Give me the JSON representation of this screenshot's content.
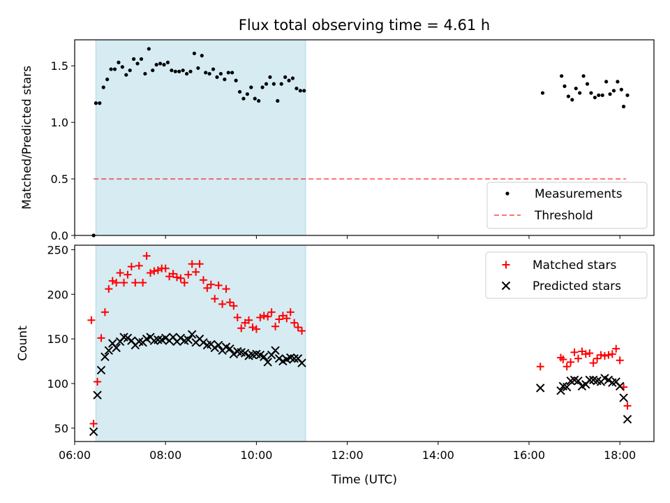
{
  "title": "Flux total observing time = 4.61 h",
  "colors": {
    "highlight": "#add8e6",
    "threshold": "#ff0000",
    "matched": "#ff0000",
    "predicted": "#000000",
    "measurement": "#000000"
  },
  "chart_data": [
    {
      "type": "scatter",
      "ylabel": "Matched/Predicted stars",
      "xlim": [
        "06:00",
        "18:45"
      ],
      "ylim": [
        0,
        1.73
      ],
      "yticks": [
        "0.0",
        "0.5",
        "1.0",
        "1.5"
      ],
      "highlight_span": [
        "06:28",
        "11:05"
      ],
      "legend": {
        "position": "lower right",
        "entries": [
          "Measurements",
          "Threshold"
        ]
      },
      "threshold": {
        "name": "Threshold",
        "value": 0.5,
        "x_range": [
          "06:25",
          "18:08"
        ]
      },
      "series": [
        {
          "name": "Measurements",
          "points": [
            [
              "06:25",
              0.0
            ],
            [
              "06:28",
              1.17
            ],
            [
              "06:33",
              1.17
            ],
            [
              "06:38",
              1.31
            ],
            [
              "06:43",
              1.38
            ],
            [
              "06:48",
              1.47
            ],
            [
              "06:53",
              1.47
            ],
            [
              "06:58",
              1.53
            ],
            [
              "07:03",
              1.49
            ],
            [
              "07:08",
              1.42
            ],
            [
              "07:13",
              1.46
            ],
            [
              "07:18",
              1.56
            ],
            [
              "07:23",
              1.52
            ],
            [
              "07:28",
              1.56
            ],
            [
              "07:33",
              1.43
            ],
            [
              "07:38",
              1.65
            ],
            [
              "07:43",
              1.46
            ],
            [
              "07:48",
              1.51
            ],
            [
              "07:53",
              1.52
            ],
            [
              "07:58",
              1.51
            ],
            [
              "08:03",
              1.53
            ],
            [
              "08:08",
              1.46
            ],
            [
              "08:13",
              1.45
            ],
            [
              "08:18",
              1.45
            ],
            [
              "08:23",
              1.46
            ],
            [
              "08:28",
              1.43
            ],
            [
              "08:33",
              1.45
            ],
            [
              "08:38",
              1.61
            ],
            [
              "08:43",
              1.48
            ],
            [
              "08:48",
              1.59
            ],
            [
              "08:53",
              1.44
            ],
            [
              "08:58",
              1.43
            ],
            [
              "09:03",
              1.47
            ],
            [
              "09:08",
              1.4
            ],
            [
              "09:13",
              1.43
            ],
            [
              "09:18",
              1.38
            ],
            [
              "09:23",
              1.44
            ],
            [
              "09:28",
              1.44
            ],
            [
              "09:33",
              1.37
            ],
            [
              "09:38",
              1.27
            ],
            [
              "09:43",
              1.21
            ],
            [
              "09:48",
              1.25
            ],
            [
              "09:53",
              1.31
            ],
            [
              "09:58",
              1.21
            ],
            [
              "10:03",
              1.19
            ],
            [
              "10:08",
              1.31
            ],
            [
              "10:13",
              1.34
            ],
            [
              "10:18",
              1.4
            ],
            [
              "10:23",
              1.34
            ],
            [
              "10:28",
              1.19
            ],
            [
              "10:33",
              1.34
            ],
            [
              "10:38",
              1.4
            ],
            [
              "10:43",
              1.37
            ],
            [
              "10:48",
              1.39
            ],
            [
              "10:53",
              1.3
            ],
            [
              "10:58",
              1.28
            ],
            [
              "11:03",
              1.28
            ],
            [
              "16:18",
              1.26
            ],
            [
              "16:43",
              1.41
            ],
            [
              "16:47",
              1.32
            ],
            [
              "16:52",
              1.23
            ],
            [
              "16:57",
              1.2
            ],
            [
              "17:02",
              1.3
            ],
            [
              "17:07",
              1.26
            ],
            [
              "17:12",
              1.41
            ],
            [
              "17:17",
              1.34
            ],
            [
              "17:22",
              1.26
            ],
            [
              "17:27",
              1.22
            ],
            [
              "17:32",
              1.24
            ],
            [
              "17:37",
              1.24
            ],
            [
              "17:42",
              1.36
            ],
            [
              "17:47",
              1.25
            ],
            [
              "17:52",
              1.28
            ],
            [
              "17:57",
              1.36
            ],
            [
              "18:02",
              1.29
            ],
            [
              "18:05",
              1.14
            ],
            [
              "18:10",
              1.24
            ]
          ]
        }
      ]
    },
    {
      "type": "scatter",
      "xlabel": "Time (UTC)",
      "ylabel": "Count",
      "xlim": [
        "06:00",
        "18:45"
      ],
      "ylim": [
        35,
        255
      ],
      "xticks": [
        "06:00",
        "08:00",
        "10:00",
        "12:00",
        "14:00",
        "16:00",
        "18:00"
      ],
      "yticks": [
        "50",
        "100",
        "150",
        "200",
        "250"
      ],
      "highlight_span": [
        "06:28",
        "11:05"
      ],
      "legend": {
        "position": "upper right",
        "entries": [
          "Matched stars",
          "Predicted stars"
        ]
      },
      "series": [
        {
          "name": "Matched stars",
          "points": [
            [
              "06:22",
              171
            ],
            [
              "06:25",
              55
            ],
            [
              "06:30",
              102
            ],
            [
              "06:35",
              151
            ],
            [
              "06:40",
              180
            ],
            [
              "06:45",
              206
            ],
            [
              "06:50",
              215
            ],
            [
              "06:55",
              213
            ],
            [
              "07:00",
              224
            ],
            [
              "07:05",
              213
            ],
            [
              "07:10",
              222
            ],
            [
              "07:15",
              231
            ],
            [
              "07:20",
              213
            ],
            [
              "07:25",
              232
            ],
            [
              "07:30",
              213
            ],
            [
              "07:35",
              243
            ],
            [
              "07:40",
              224
            ],
            [
              "07:45",
              226
            ],
            [
              "07:50",
              227
            ],
            [
              "07:55",
              229
            ],
            [
              "08:00",
              229
            ],
            [
              "08:05",
              220
            ],
            [
              "08:10",
              223
            ],
            [
              "08:15",
              219
            ],
            [
              "08:20",
              218
            ],
            [
              "08:25",
              213
            ],
            [
              "08:30",
              222
            ],
            [
              "08:35",
              234
            ],
            [
              "08:40",
              225
            ],
            [
              "08:45",
              234
            ],
            [
              "08:50",
              216
            ],
            [
              "08:55",
              207
            ],
            [
              "09:00",
              211
            ],
            [
              "09:05",
              195
            ],
            [
              "09:10",
              210
            ],
            [
              "09:15",
              189
            ],
            [
              "09:20",
              206
            ],
            [
              "09:25",
              191
            ],
            [
              "09:30",
              187
            ],
            [
              "09:35",
              174
            ],
            [
              "09:40",
              162
            ],
            [
              "09:45",
              168
            ],
            [
              "09:50",
              171
            ],
            [
              "09:55",
              163
            ],
            [
              "10:00",
              161
            ],
            [
              "10:05",
              174
            ],
            [
              "10:10",
              176
            ],
            [
              "10:15",
              175
            ],
            [
              "10:20",
              180
            ],
            [
              "10:25",
              164
            ],
            [
              "10:30",
              172
            ],
            [
              "10:35",
              176
            ],
            [
              "10:40",
              173
            ],
            [
              "10:45",
              180
            ],
            [
              "10:50",
              168
            ],
            [
              "10:55",
              163
            ],
            [
              "11:00",
              159
            ],
            [
              "16:15",
              119
            ],
            [
              "16:42",
              129
            ],
            [
              "16:45",
              127
            ],
            [
              "16:50",
              119
            ],
            [
              "16:55",
              124
            ],
            [
              "17:00",
              135
            ],
            [
              "17:05",
              128
            ],
            [
              "17:10",
              136
            ],
            [
              "17:15",
              133
            ],
            [
              "17:20",
              134
            ],
            [
              "17:25",
              123
            ],
            [
              "17:30",
              128
            ],
            [
              "17:35",
              132
            ],
            [
              "17:40",
              131
            ],
            [
              "17:45",
              132
            ],
            [
              "17:50",
              133
            ],
            [
              "17:55",
              139
            ],
            [
              "18:00",
              126
            ],
            [
              "18:05",
              96
            ],
            [
              "18:10",
              75
            ]
          ]
        },
        {
          "name": "Predicted stars",
          "points": [
            [
              "06:25",
              46
            ],
            [
              "06:30",
              87
            ],
            [
              "06:35",
              115
            ],
            [
              "06:40",
              130
            ],
            [
              "06:45",
              137
            ],
            [
              "06:50",
              145
            ],
            [
              "06:55",
              140
            ],
            [
              "07:00",
              147
            ],
            [
              "07:05",
              152
            ],
            [
              "07:10",
              151
            ],
            [
              "07:15",
              148
            ],
            [
              "07:20",
              143
            ],
            [
              "07:25",
              147
            ],
            [
              "07:30",
              146
            ],
            [
              "07:35",
              150
            ],
            [
              "07:40",
              152
            ],
            [
              "07:45",
              148
            ],
            [
              "07:50",
              149
            ],
            [
              "07:55",
              149
            ],
            [
              "08:00",
              151
            ],
            [
              "08:05",
              148
            ],
            [
              "08:10",
              152
            ],
            [
              "08:15",
              147
            ],
            [
              "08:20",
              151
            ],
            [
              "08:25",
              148
            ],
            [
              "08:30",
              149
            ],
            [
              "08:35",
              155
            ],
            [
              "08:40",
              146
            ],
            [
              "08:45",
              150
            ],
            [
              "08:50",
              146
            ],
            [
              "08:55",
              143
            ],
            [
              "09:00",
              144
            ],
            [
              "09:05",
              140
            ],
            [
              "09:10",
              143
            ],
            [
              "09:15",
              137
            ],
            [
              "09:20",
              141
            ],
            [
              "09:25",
              139
            ],
            [
              "09:30",
              133
            ],
            [
              "09:35",
              136
            ],
            [
              "09:40",
              135
            ],
            [
              "09:45",
              134
            ],
            [
              "09:50",
              131
            ],
            [
              "09:55",
              132
            ],
            [
              "10:00",
              133
            ],
            [
              "10:05",
              132
            ],
            [
              "10:10",
              130
            ],
            [
              "10:15",
              124
            ],
            [
              "10:20",
              132
            ],
            [
              "10:25",
              137
            ],
            [
              "10:30",
              128
            ],
            [
              "10:35",
              125
            ],
            [
              "10:40",
              127
            ],
            [
              "10:45",
              129
            ],
            [
              "10:50",
              128
            ],
            [
              "10:55",
              128
            ],
            [
              "11:00",
              123
            ],
            [
              "16:15",
              95
            ],
            [
              "16:42",
              92
            ],
            [
              "16:45",
              97
            ],
            [
              "16:50",
              96
            ],
            [
              "16:55",
              103
            ],
            [
              "17:00",
              104
            ],
            [
              "17:05",
              103
            ],
            [
              "17:10",
              97
            ],
            [
              "17:15",
              99
            ],
            [
              "17:20",
              104
            ],
            [
              "17:25",
              104
            ],
            [
              "17:30",
              103
            ],
            [
              "17:35",
              102
            ],
            [
              "17:40",
              106
            ],
            [
              "17:45",
              104
            ],
            [
              "17:50",
              101
            ],
            [
              "17:55",
              102
            ],
            [
              "18:00",
              97
            ],
            [
              "18:05",
              84
            ],
            [
              "18:10",
              60
            ]
          ]
        }
      ]
    }
  ]
}
